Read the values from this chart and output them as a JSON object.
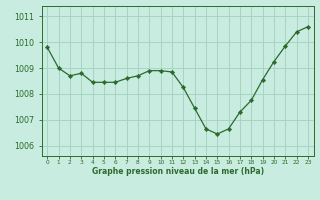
{
  "hours": [
    0,
    1,
    2,
    3,
    4,
    5,
    6,
    7,
    8,
    9,
    10,
    11,
    12,
    13,
    14,
    15,
    16,
    17,
    18,
    19,
    20,
    21,
    22,
    23
  ],
  "pressure": [
    1009.8,
    1009.0,
    1008.7,
    1008.8,
    1008.45,
    1008.45,
    1008.45,
    1008.6,
    1008.7,
    1008.9,
    1008.9,
    1008.85,
    1008.25,
    1007.45,
    1006.65,
    1006.45,
    1006.65,
    1007.3,
    1007.75,
    1008.55,
    1009.25,
    1009.85,
    1010.4,
    1010.6
  ],
  "line_color": "#2d6a2d",
  "marker_color": "#2d6a2d",
  "bg_color": "#c8ece0",
  "grid_color": "#a8d4c4",
  "axis_color": "#2d6a2d",
  "text_color": "#2d6a2d",
  "xlabel": "Graphe pression niveau de la mer (hPa)",
  "ylim_min": 1005.6,
  "ylim_max": 1011.4,
  "yticks": [
    1006,
    1007,
    1008,
    1009,
    1010,
    1011
  ]
}
